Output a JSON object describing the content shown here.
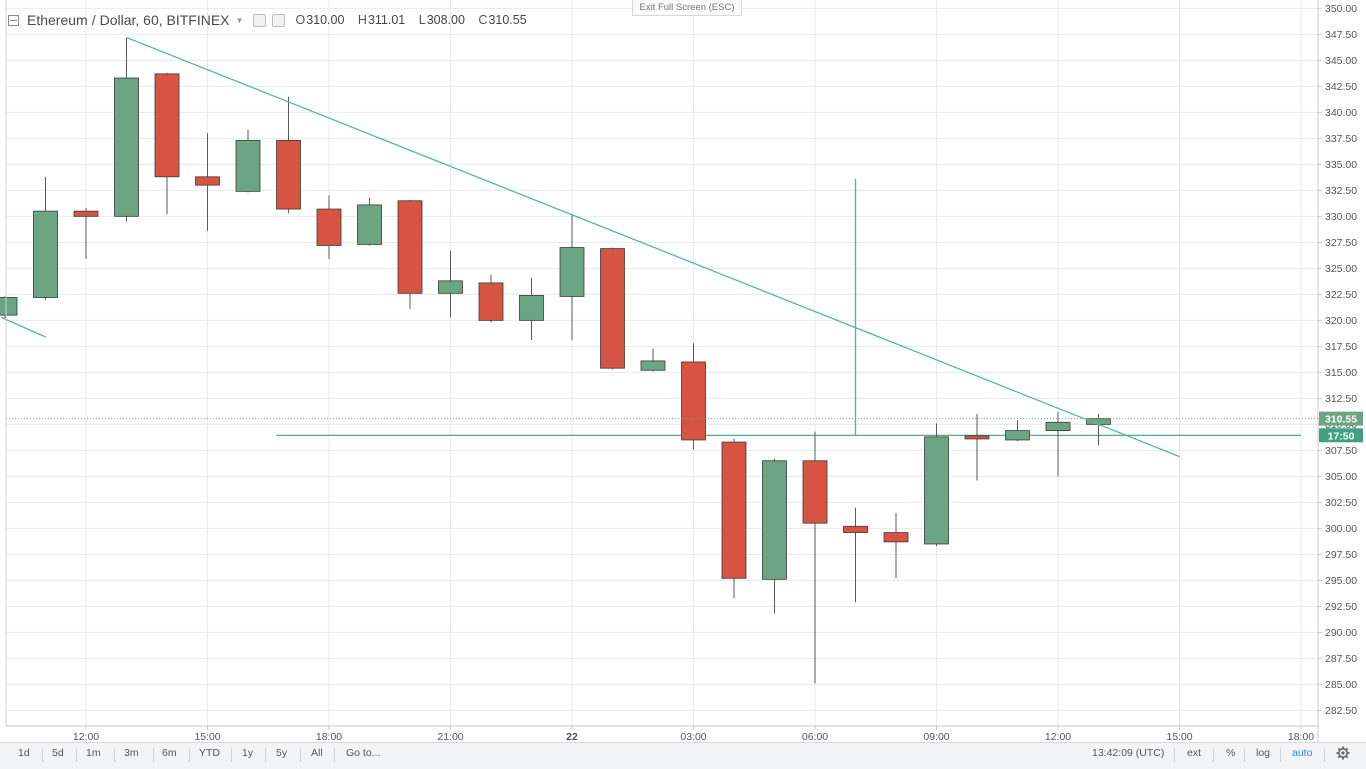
{
  "header": {
    "symbol": "Ethereum",
    "slash": "/",
    "quote": "Dollar, 60, BITFINEX",
    "ohlc": [
      {
        "key": "O",
        "value": "310.00"
      },
      {
        "key": "H",
        "value": "311.01"
      },
      {
        "key": "L",
        "value": "308.00"
      },
      {
        "key": "C",
        "value": "310.55"
      }
    ]
  },
  "exit_fullscreen": "Exit Full Screen (ESC)",
  "toolbar": {
    "ranges": [
      "1d",
      "5d",
      "1m",
      "3m",
      "6m",
      "YTD",
      "1y",
      "5y",
      "All"
    ],
    "goto": "Go to...",
    "time": "13:42:09 (UTC)",
    "ext": "ext",
    "percent": "%",
    "log": "log",
    "auto": "auto"
  },
  "colors": {
    "up": "#6ba583",
    "down": "#d75442",
    "trendline": "#52b8a8",
    "hline": "#3fa17f",
    "grid": "#e9e9ea",
    "axis_text": "#555555"
  },
  "chart_data": {
    "type": "candlestick",
    "interval_minutes": 60,
    "ylim": [
      281.0,
      350.8
    ],
    "y_ticks": [
      "282.50",
      "285.00",
      "287.50",
      "290.00",
      "292.50",
      "295.00",
      "297.50",
      "300.00",
      "302.50",
      "305.00",
      "307.50",
      "310.00",
      "312.50",
      "315.00",
      "317.50",
      "320.00",
      "322.50",
      "325.00",
      "327.50",
      "330.00",
      "332.50",
      "335.00",
      "337.50",
      "340.00",
      "342.50",
      "345.00",
      "347.50",
      "350.00"
    ],
    "x_ticks": [
      {
        "label": "12:00",
        "hours": 12,
        "bold": false
      },
      {
        "label": "15:00",
        "hours": 15,
        "bold": false
      },
      {
        "label": "18:00",
        "hours": 18,
        "bold": false
      },
      {
        "label": "21:00",
        "hours": 21,
        "bold": false
      },
      {
        "label": "22",
        "hours": 24,
        "bold": true
      },
      {
        "label": "03:00",
        "hours": 27,
        "bold": false
      },
      {
        "label": "06:00",
        "hours": 30,
        "bold": false
      },
      {
        "label": "09:00",
        "hours": 33,
        "bold": false
      },
      {
        "label": "12:00",
        "hours": 36,
        "bold": false
      },
      {
        "label": "15:00",
        "hours": 39,
        "bold": false
      },
      {
        "label": "18:00",
        "hours": 42,
        "bold": false
      }
    ],
    "candles": [
      {
        "hours": 10,
        "open": 320.5,
        "high": 322.3,
        "low": 320.2,
        "close": 322.2
      },
      {
        "hours": 11,
        "open": 322.2,
        "high": 333.8,
        "low": 322.0,
        "close": 330.5
      },
      {
        "hours": 12,
        "open": 330.5,
        "high": 330.8,
        "low": 325.9,
        "close": 330.0
      },
      {
        "hours": 13,
        "open": 330.0,
        "high": 347.2,
        "low": 329.5,
        "close": 343.3
      },
      {
        "hours": 14,
        "open": 343.7,
        "high": 343.8,
        "low": 330.2,
        "close": 333.8
      },
      {
        "hours": 15,
        "open": 333.8,
        "high": 338.0,
        "low": 328.6,
        "close": 333.0
      },
      {
        "hours": 16,
        "open": 332.4,
        "high": 338.3,
        "low": 332.3,
        "close": 337.3
      },
      {
        "hours": 17,
        "open": 337.3,
        "high": 341.5,
        "low": 330.3,
        "close": 330.7
      },
      {
        "hours": 18,
        "open": 330.7,
        "high": 332.0,
        "low": 325.9,
        "close": 327.2
      },
      {
        "hours": 19,
        "open": 327.3,
        "high": 331.8,
        "low": 327.2,
        "close": 331.1
      },
      {
        "hours": 20,
        "open": 331.5,
        "high": 331.6,
        "low": 321.1,
        "close": 322.6
      },
      {
        "hours": 21,
        "open": 322.6,
        "high": 326.7,
        "low": 320.3,
        "close": 323.8
      },
      {
        "hours": 22,
        "open": 323.6,
        "high": 324.4,
        "low": 319.8,
        "close": 320.0
      },
      {
        "hours": 23,
        "open": 320.0,
        "high": 324.1,
        "low": 318.1,
        "close": 322.4
      },
      {
        "hours": 24,
        "open": 322.3,
        "high": 330.2,
        "low": 318.1,
        "close": 327.0
      },
      {
        "hours": 25,
        "open": 326.9,
        "high": 327.0,
        "low": 315.3,
        "close": 315.4
      },
      {
        "hours": 26,
        "open": 315.2,
        "high": 317.3,
        "low": 315.1,
        "close": 316.1
      },
      {
        "hours": 27,
        "open": 316.0,
        "high": 317.8,
        "low": 307.6,
        "close": 308.5
      },
      {
        "hours": 28,
        "open": 308.3,
        "high": 308.6,
        "low": 293.3,
        "close": 295.2
      },
      {
        "hours": 29,
        "open": 295.1,
        "high": 306.7,
        "low": 291.8,
        "close": 306.5
      },
      {
        "hours": 30,
        "open": 306.5,
        "high": 309.3,
        "low": 285.1,
        "close": 300.5
      },
      {
        "hours": 31,
        "open": 300.2,
        "high": 302.0,
        "low": 292.9,
        "close": 299.6
      },
      {
        "hours": 32,
        "open": 299.6,
        "high": 301.5,
        "low": 295.2,
        "close": 298.7
      },
      {
        "hours": 33,
        "open": 298.5,
        "high": 310.1,
        "low": 298.3,
        "close": 308.8
      },
      {
        "hours": 34,
        "open": 308.9,
        "high": 311.0,
        "low": 304.6,
        "close": 308.6
      },
      {
        "hours": 35,
        "open": 308.5,
        "high": 310.4,
        "low": 308.4,
        "close": 309.4
      },
      {
        "hours": 36,
        "open": 309.4,
        "high": 311.2,
        "low": 305.0,
        "close": 310.2
      },
      {
        "hours": 37,
        "open": 310.0,
        "high": 311.0,
        "low": 308.0,
        "close": 310.55
      }
    ],
    "trendlines": [
      {
        "x1_hours": 13,
        "y1": 347.2,
        "x2_hours": 39,
        "y2": 306.9
      },
      {
        "x1_hours": 9.9,
        "y1": 320.3,
        "x2_hours": 11,
        "y2": 318.4
      }
    ],
    "horizontal_line": {
      "x1_hours": 16.7,
      "x2_hours": 42,
      "y": 308.95
    },
    "vertical_line": {
      "x_hours": 31,
      "y_top": 333.6,
      "y_bottom": 308.95
    },
    "last_price": {
      "value": 310.55,
      "label": "310.55"
    },
    "countdown": {
      "y": 308.95,
      "label": "17:50"
    }
  }
}
